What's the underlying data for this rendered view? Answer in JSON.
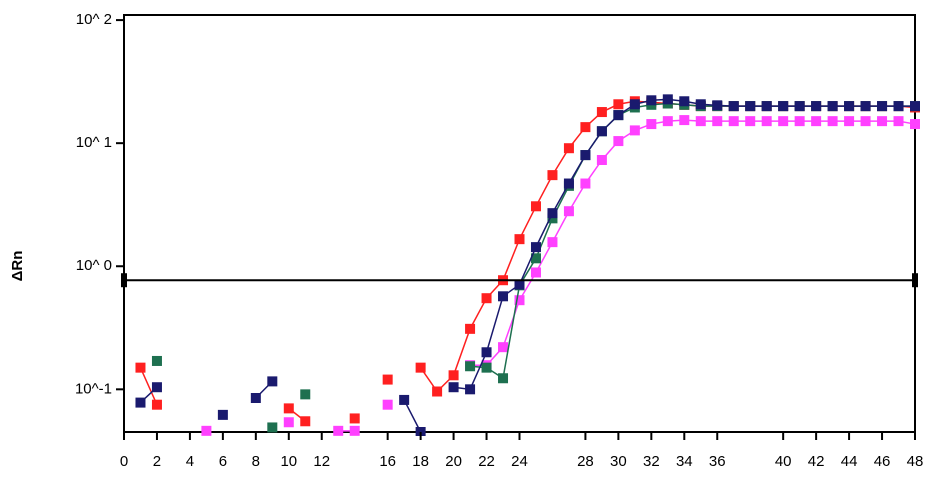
{
  "chart_data": {
    "type": "line",
    "y_label": "ΔRn",
    "log_y": true,
    "x": [
      1,
      2,
      3,
      4,
      5,
      6,
      7,
      8,
      9,
      10,
      11,
      12,
      13,
      14,
      15,
      16,
      17,
      18,
      19,
      20,
      21,
      22,
      23,
      24,
      25,
      26,
      27,
      28,
      29,
      30,
      31,
      32,
      33,
      34,
      35,
      36,
      37,
      38,
      39,
      40,
      41,
      42,
      43,
      44,
      45,
      46,
      47,
      48
    ],
    "xlim": [
      0,
      48
    ],
    "xticks": [
      0,
      2,
      4,
      6,
      8,
      10,
      12,
      16,
      18,
      20,
      22,
      24,
      28,
      30,
      32,
      34,
      36,
      40,
      42,
      44,
      46,
      48
    ],
    "ylim": [
      0.045,
      110
    ],
    "yticks": [
      {
        "value": 0.1,
        "label": "10^-1"
      },
      {
        "value": 1,
        "label": "10^ 0"
      },
      {
        "value": 10,
        "label": "10^ 1"
      },
      {
        "value": 100,
        "label": "10^ 2"
      }
    ],
    "threshold": 0.77,
    "series": [
      {
        "color": "#ff40ff",
        "values": [
          null,
          null,
          null,
          null,
          0.046,
          null,
          null,
          null,
          null,
          0.054,
          null,
          null,
          0.046,
          0.046,
          null,
          0.075,
          null,
          null,
          null,
          null,
          0.157,
          0.157,
          0.22,
          0.53,
          0.89,
          1.57,
          2.8,
          4.7,
          7.3,
          10.4,
          12.7,
          14.3,
          15.1,
          15.4,
          15.1,
          15.1,
          15.1,
          15.1,
          15.1,
          15.1,
          15.1,
          15.1,
          15.1,
          15.1,
          15.1,
          15.1,
          15.1,
          14.3
        ]
      },
      {
        "color": "#ff2020",
        "values": [
          0.15,
          0.075,
          null,
          null,
          null,
          null,
          null,
          null,
          null,
          0.07,
          0.055,
          null,
          null,
          0.058,
          null,
          0.12,
          null,
          0.15,
          0.096,
          0.13,
          0.31,
          0.55,
          0.77,
          1.66,
          3.07,
          5.5,
          9.1,
          13.5,
          17.9,
          20.7,
          21.9,
          21.5,
          21,
          20.5,
          20,
          20,
          20,
          20,
          20,
          20,
          20,
          20,
          20,
          20,
          20,
          20,
          20,
          19.5
        ]
      },
      {
        "color": "#1e7050",
        "values": [
          null,
          0.17,
          null,
          null,
          null,
          null,
          null,
          null,
          0.049,
          null,
          0.091,
          null,
          null,
          null,
          null,
          null,
          null,
          null,
          null,
          null,
          0.154,
          0.15,
          0.123,
          0.7,
          1.16,
          2.45,
          4.5,
          8,
          12.5,
          16.9,
          19.5,
          20.5,
          21,
          20.5,
          20,
          20,
          20,
          20,
          20,
          20,
          20,
          20,
          20,
          20,
          20,
          20,
          20,
          20
        ]
      },
      {
        "color": "#1a1a6e",
        "values": [
          0.078,
          0.104,
          null,
          null,
          null,
          0.062,
          null,
          0.085,
          0.116,
          null,
          null,
          null,
          null,
          null,
          null,
          null,
          0.082,
          0.045,
          null,
          0.104,
          0.1,
          0.2,
          0.57,
          0.71,
          1.43,
          2.7,
          4.7,
          8,
          12.5,
          16.9,
          20.7,
          22.3,
          22.7,
          21.9,
          20.7,
          20.3,
          20,
          20,
          20,
          20,
          20,
          20,
          20,
          20,
          20,
          20,
          20,
          20
        ]
      }
    ]
  }
}
